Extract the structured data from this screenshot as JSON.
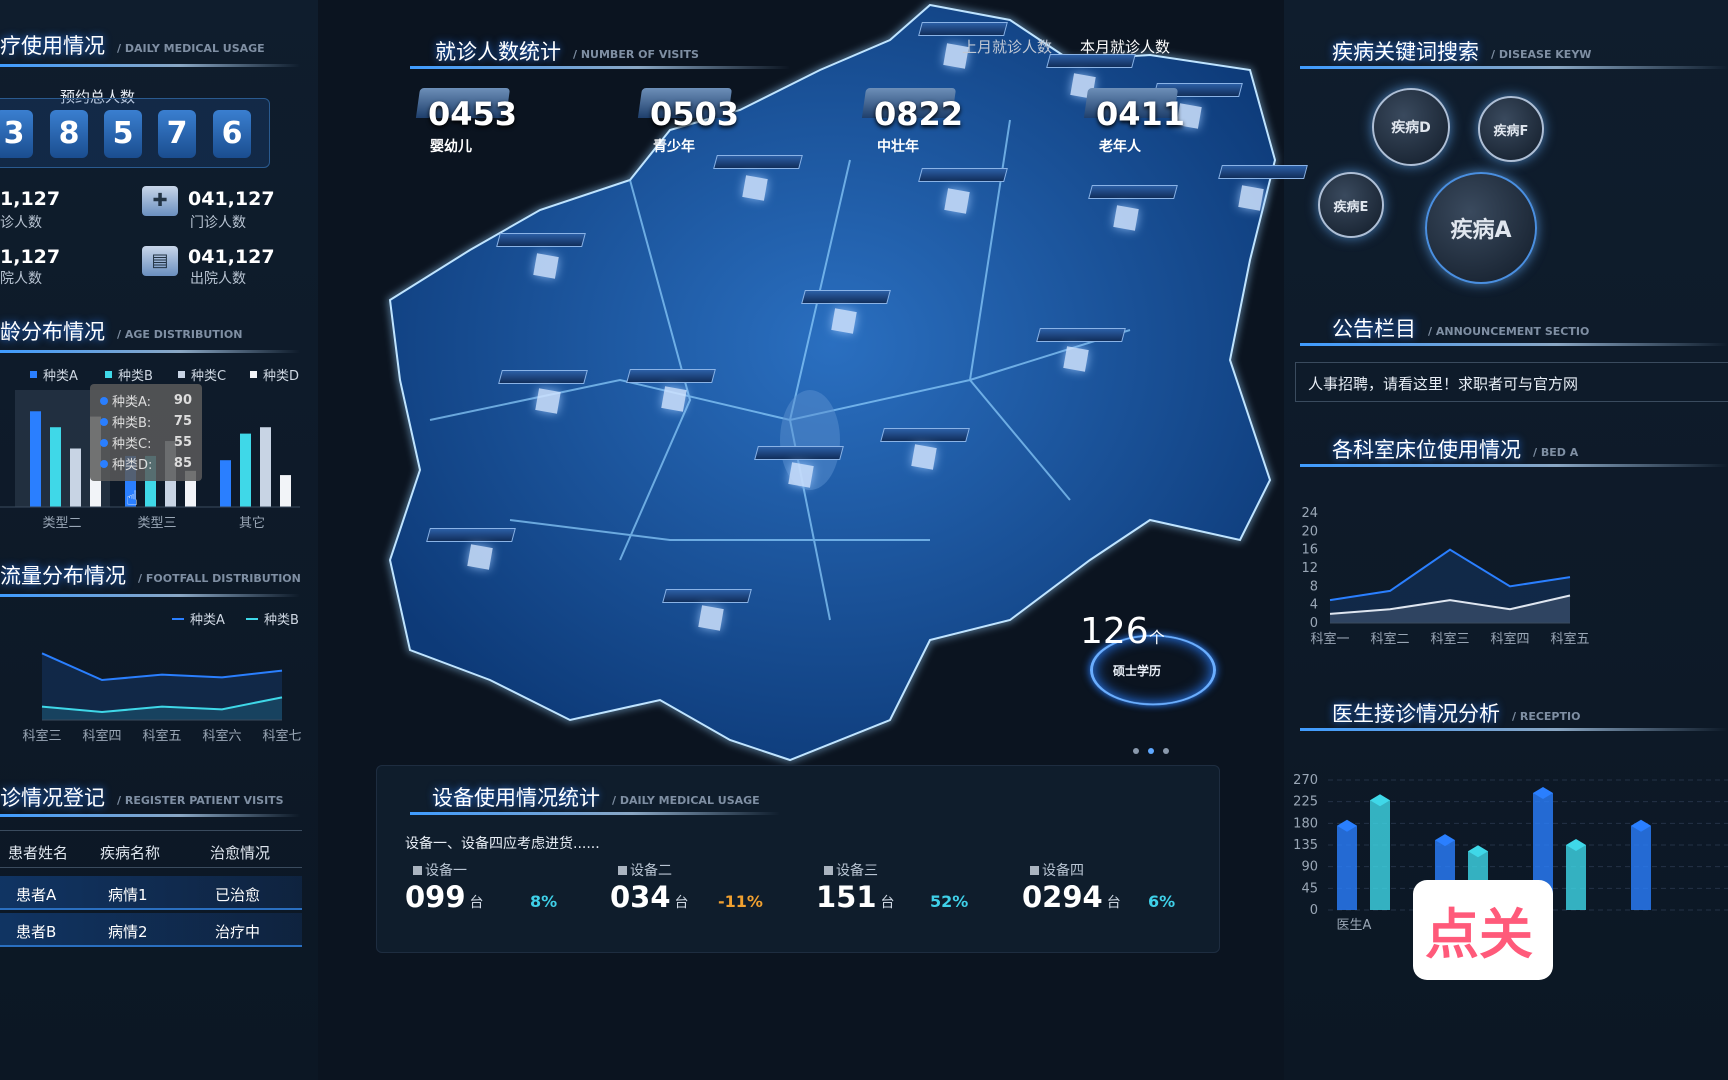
{
  "left": {
    "usage_title": "疗使用情况",
    "usage_en": "/ DAILY MEDICAL USAGE",
    "appointments_label": "预约总人数",
    "appointment_digits": [
      "3",
      "8",
      "5",
      "7",
      "6"
    ],
    "stats": [
      {
        "value": "1,127",
        "label": "诊人数"
      },
      {
        "value": "041,127",
        "label": "门诊人数",
        "icon": "clinic-icon"
      },
      {
        "value": "1,127",
        "label": "院人数"
      },
      {
        "value": "041,127",
        "label": "出院人数",
        "icon": "discharge-icon"
      }
    ],
    "age_title": "龄分布情况",
    "age_en": "/ AGE DISTRIBUTION",
    "footfall_title": "流量分布情况",
    "footfall_en": "/ FOOTFALL DISTRIBUTION",
    "register_title": "诊情况登记",
    "register_en": "/ REGISTER PATIENT VISITS",
    "table": {
      "headers": [
        "患者姓名",
        "疾病名称",
        "治愈情况"
      ],
      "rows": [
        [
          "患者A",
          "病情1",
          "已治愈"
        ],
        [
          "患者B",
          "病情2",
          "治疗中"
        ]
      ]
    },
    "tooltip": [
      {
        "name": "种类A:",
        "value": "90"
      },
      {
        "name": "种类B:",
        "value": "75"
      },
      {
        "name": "种类C:",
        "value": "55"
      },
      {
        "name": "种类D:",
        "value": "85"
      }
    ]
  },
  "center": {
    "visits_title": "就诊人数统计",
    "visits_en": "/ NUMBER OF VISITS",
    "kpis": [
      {
        "value": "0453",
        "label": "婴幼儿"
      },
      {
        "value": "0503",
        "label": "青少年"
      },
      {
        "value": "0822",
        "label": "中壮年"
      },
      {
        "value": "0411",
        "label": "老年人"
      }
    ],
    "last_month": "上月就诊人数",
    "this_month": "本月就诊人数",
    "degree_count": "126",
    "degree_unit": "个",
    "degree_label": "硕士学历",
    "equip_title": "设备使用情况统计",
    "equip_en": "/ DAILY MEDICAL USAGE",
    "equip_note": "设备一、设备四应考虑进货......",
    "equipment": [
      {
        "name": "设备一",
        "value": "099",
        "unit": "台",
        "pct": "8%",
        "color": "#3fd0e8"
      },
      {
        "name": "设备二",
        "value": "034",
        "unit": "台",
        "pct": "-11%",
        "color": "#f0a030"
      },
      {
        "name": "设备三",
        "value": "151",
        "unit": "台",
        "pct": "52%",
        "color": "#3fd0e8"
      },
      {
        "name": "设备四",
        "value": "0294",
        "unit": "台",
        "pct": "6%",
        "color": "#3fd0e8"
      }
    ]
  },
  "right": {
    "disease_title": "疾病关键词搜索",
    "disease_en": "/ DISEASE KEYW",
    "diseases": [
      "疾病D",
      "疾病F",
      "疾病E",
      "疾病A"
    ],
    "announce_title": "公告栏目",
    "announce_en": "/ ANNOUNCEMENT SECTIO",
    "announcement": "人事招聘，请看这里！求职者可与官方网",
    "bed_title": "各科室床位使用情况",
    "bed_en": "/ BED A",
    "doctor_title": "医生接诊情况分析",
    "doctor_en": "/ RECEPTIO"
  },
  "chart_data": [
    {
      "type": "bar",
      "categories": [
        "类型二",
        "类型三",
        "其它"
      ],
      "series": [
        {
          "name": "种类A",
          "values": [
            90,
            48,
            44
          ]
        },
        {
          "name": "种类B",
          "values": [
            75,
            48,
            69
          ]
        },
        {
          "name": "种类C",
          "values": [
            55,
            62,
            75
          ]
        },
        {
          "name": "种类D",
          "values": [
            85,
            34,
            30
          ]
        }
      ],
      "ylim": [
        0,
        110
      ],
      "colors": [
        "#2a7fff",
        "#3fd8e8",
        "#c8d4e4",
        "#f2f4f8"
      ],
      "legend": "top"
    },
    {
      "type": "area",
      "categories": [
        "科室三",
        "科室四",
        "科室五",
        "科室六",
        "科室七"
      ],
      "series": [
        {
          "name": "种类A",
          "values": [
            50,
            30,
            34,
            32,
            37
          ]
        },
        {
          "name": "种类B",
          "values": [
            10,
            6,
            10,
            8,
            17
          ]
        }
      ],
      "ylim": [
        0,
        60
      ],
      "colors": [
        "#2a7fff",
        "#3fd8e8"
      ],
      "legend": "top-right"
    },
    {
      "type": "area",
      "categories": [
        "科室一",
        "科室二",
        "科室三",
        "科室四",
        "科室五"
      ],
      "series": [
        {
          "values": [
            5,
            7,
            16,
            8,
            10
          ]
        },
        {
          "values": [
            2,
            3,
            5,
            3,
            6
          ]
        }
      ],
      "ylim": [
        0,
        24
      ],
      "yticks": [
        0,
        4,
        8,
        12,
        16,
        20,
        24
      ],
      "colors": [
        "#2a7fff",
        "#dfe6f0"
      ]
    },
    {
      "type": "bar",
      "categories": [
        "医生A",
        "",
        "",
        ""
      ],
      "series": [
        {
          "values": [
            175,
            145,
            243,
            175
          ]
        },
        {
          "values": [
            228,
            122,
            135,
            null
          ]
        }
      ],
      "ylim": [
        0,
        270
      ],
      "yticks": [
        0,
        45,
        90,
        135,
        180,
        225,
        270
      ],
      "colors": [
        "#2a7fff",
        "#3fd8e8"
      ]
    }
  ]
}
